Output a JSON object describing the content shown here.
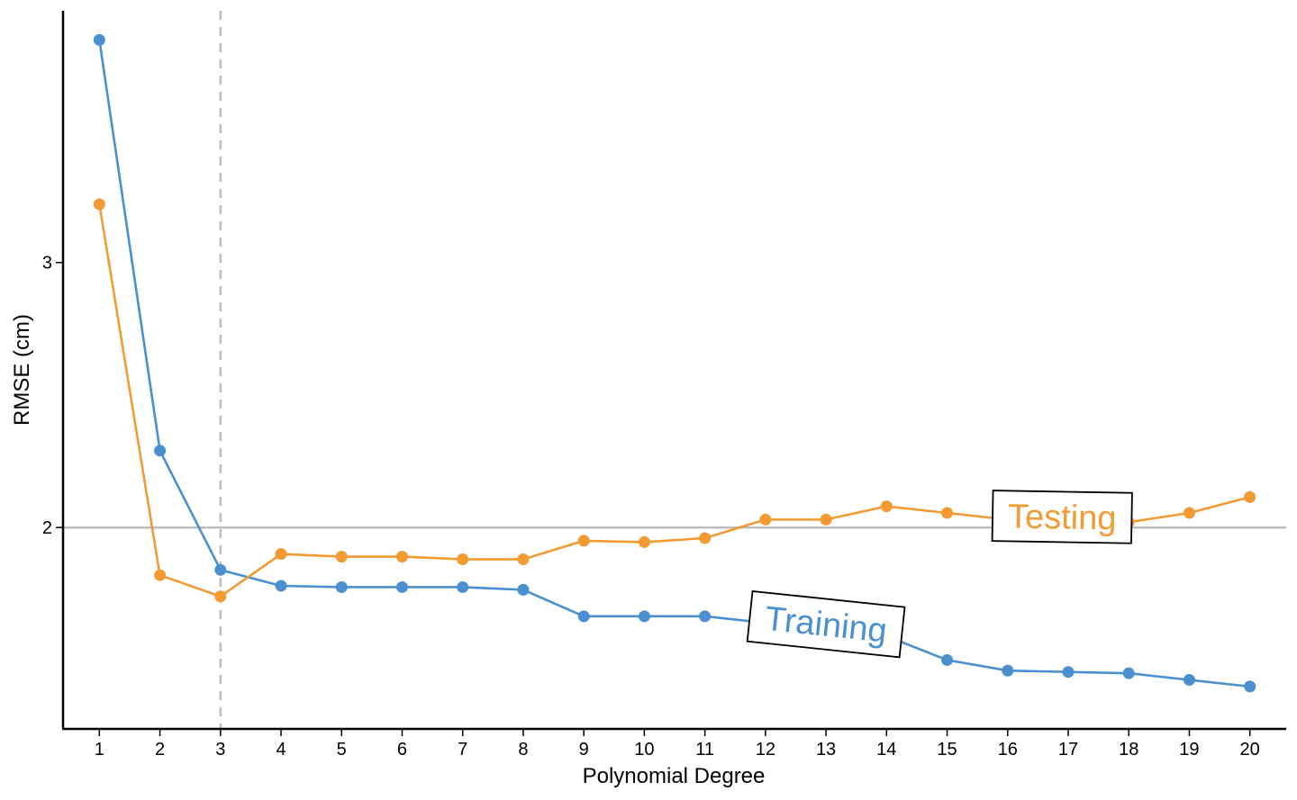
{
  "chart_data": {
    "type": "line",
    "title": "",
    "xlabel": "Polynomial Degree",
    "ylabel": "RMSE (cm)",
    "x": [
      1,
      2,
      3,
      4,
      5,
      6,
      7,
      8,
      9,
      10,
      11,
      12,
      13,
      14,
      15,
      16,
      17,
      18,
      19,
      20
    ],
    "xlim": [
      0.4,
      20.6
    ],
    "ylim": [
      1.24,
      3.95
    ],
    "yticks": [
      2,
      3
    ],
    "grid": false,
    "reference_hline": 2,
    "reference_vline": 3,
    "series": [
      {
        "name": "Training",
        "color": "#4a90d0",
        "values": [
          3.84,
          2.29,
          1.84,
          1.78,
          1.775,
          1.775,
          1.775,
          1.765,
          1.665,
          1.665,
          1.665,
          1.64,
          1.63,
          1.59,
          1.5,
          1.46,
          1.455,
          1.45,
          1.425,
          1.4
        ]
      },
      {
        "name": "Testing",
        "color": "#f39a33",
        "values": [
          3.22,
          1.82,
          1.74,
          1.9,
          1.89,
          1.89,
          1.88,
          1.88,
          1.95,
          1.945,
          1.96,
          2.03,
          2.03,
          2.08,
          2.055,
          2.03,
          2.025,
          2.02,
          2.055,
          2.115
        ]
      }
    ],
    "annotations": [
      {
        "text": "Testing",
        "x": 16.9,
        "y": 2.04,
        "angle": 1,
        "color": "#f39a33"
      },
      {
        "text": "Training",
        "x": 13.0,
        "y": 1.635,
        "angle": 6,
        "color": "#4a90d0"
      }
    ]
  }
}
